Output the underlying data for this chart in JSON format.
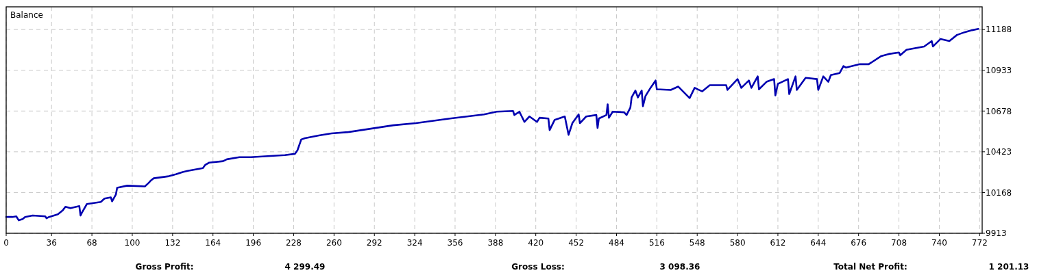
{
  "chart_data": {
    "type": "line",
    "title": "Balance",
    "x": [
      0,
      5,
      8,
      10,
      13,
      15,
      21,
      31,
      32,
      34,
      41,
      45,
      47,
      51,
      58,
      59,
      60,
      64,
      75,
      78,
      83,
      84,
      87,
      88,
      96,
      110,
      113,
      115,
      117,
      129,
      135,
      140,
      144,
      156,
      158,
      161,
      172,
      175,
      185,
      194,
      212,
      221,
      229,
      231,
      234,
      237,
      248,
      258,
      271,
      307,
      325,
      352,
      379,
      389,
      402,
      403,
      407,
      411,
      415,
      421,
      423,
      430,
      431,
      435,
      443,
      446,
      449,
      454,
      455,
      460,
      468,
      469,
      470,
      476,
      477,
      478,
      481,
      490,
      492,
      495,
      496,
      499,
      501,
      504,
      505,
      507,
      511,
      515,
      516,
      527,
      533,
      542,
      546,
      552,
      558,
      571,
      572,
      580,
      583,
      589,
      591,
      596,
      597,
      603,
      609,
      610,
      612,
      620,
      621,
      626,
      627,
      634,
      643,
      644,
      648,
      652,
      654,
      661,
      664,
      666,
      677,
      684,
      694,
      700,
      708,
      709,
      714,
      728,
      734,
      735,
      741,
      748,
      754,
      760,
      766,
      771
    ],
    "series": [
      {
        "color": "#0000b0",
        "values": [
          10015,
          10015,
          10019,
          9994,
          10002,
          10015,
          10024,
          10019,
          10007,
          10015,
          10032,
          10058,
          10079,
          10070,
          10083,
          10024,
          10041,
          10096,
          10109,
          10130,
          10138,
          10113,
          10155,
          10198,
          10211,
          10206,
          10228,
          10245,
          10257,
          10270,
          10283,
          10296,
          10304,
          10321,
          10342,
          10355,
          10364,
          10376,
          10389,
          10389,
          10398,
          10402,
          10410,
          10432,
          10500,
          10508,
          10525,
          10538,
          10546,
          10589,
          10602,
          10631,
          10657,
          10674,
          10678,
          10653,
          10674,
          10610,
          10644,
          10610,
          10636,
          10631,
          10559,
          10623,
          10644,
          10529,
          10602,
          10657,
          10602,
          10644,
          10653,
          10572,
          10631,
          10653,
          10720,
          10636,
          10674,
          10670,
          10653,
          10699,
          10763,
          10806,
          10763,
          10806,
          10708,
          10772,
          10823,
          10869,
          10814,
          10810,
          10831,
          10759,
          10823,
          10801,
          10840,
          10840,
          10810,
          10878,
          10823,
          10869,
          10823,
          10895,
          10814,
          10861,
          10878,
          10776,
          10848,
          10878,
          10784,
          10895,
          10810,
          10886,
          10878,
          10810,
          10895,
          10861,
          10903,
          10916,
          10959,
          10950,
          10971,
          10971,
          11022,
          11035,
          11044,
          11027,
          11061,
          11082,
          11116,
          11082,
          11129,
          11116,
          11154,
          11171,
          11184,
          11192
        ]
      }
    ],
    "xlim": [
      0,
      774
    ],
    "ylim": [
      9913,
      11330
    ],
    "xticks": [
      0,
      36,
      68,
      100,
      132,
      164,
      196,
      228,
      260,
      292,
      324,
      356,
      388,
      420,
      452,
      484,
      516,
      548,
      580,
      612,
      644,
      676,
      708,
      740,
      772
    ],
    "yticks": [
      9913,
      10168,
      10423,
      10678,
      10933,
      11188
    ],
    "grid": true,
    "line_style": "solid",
    "marker": "none",
    "annotations": [
      "Gross Profit:",
      "4 299.49",
      "Gross Loss:",
      "3 098.36",
      "Total Net Profit:",
      "1 201.13"
    ]
  }
}
